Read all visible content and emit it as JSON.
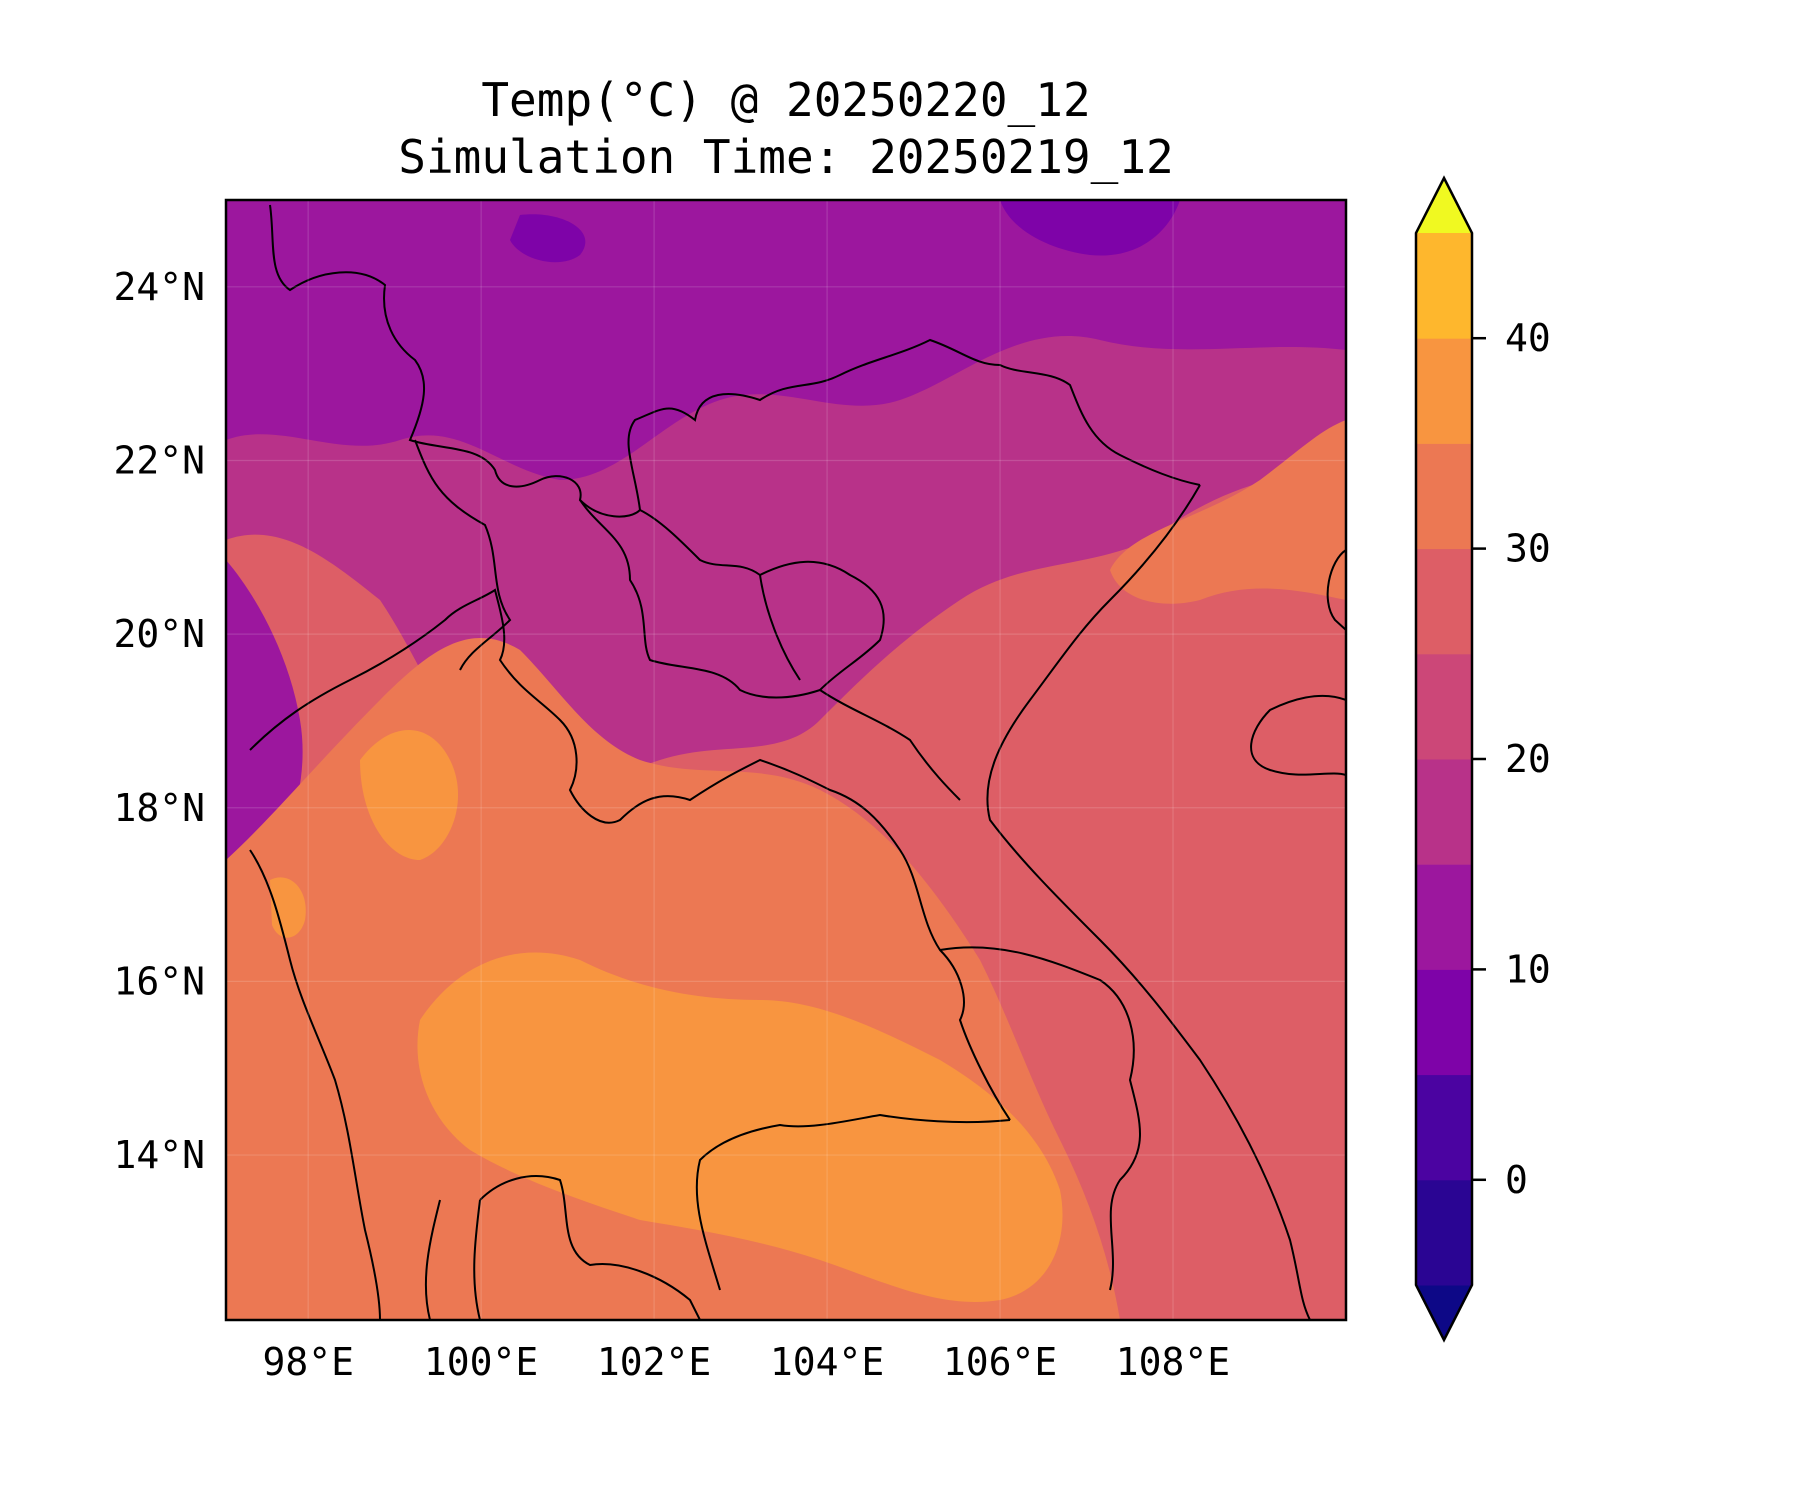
{
  "map": {
    "title_line1": "Temp(°C) @ 20250220_12",
    "title_line2": "Simulation Time: 20250219_12",
    "lon_labels": [
      "98°E",
      "100°E",
      "102°E",
      "104°E",
      "106°E",
      "108°E"
    ],
    "lat_labels": [
      "24°N",
      "22°N",
      "20°N",
      "18°N",
      "16°N",
      "14°N"
    ],
    "lon_values": [
      98,
      100,
      102,
      104,
      106,
      108
    ],
    "lat_values": [
      24,
      22,
      20,
      18,
      16,
      14
    ],
    "lon_range": [
      97.05,
      110.0
    ],
    "lat_range": [
      12.1,
      25.0
    ],
    "grid": true
  },
  "colorbar": {
    "tick_labels": [
      "0",
      "10",
      "20",
      "30",
      "40"
    ],
    "tick_values": [
      0,
      10,
      20,
      30,
      40
    ],
    "range": [
      -5,
      45
    ],
    "levels": [
      -5,
      0,
      5,
      10,
      15,
      20,
      25,
      30,
      35,
      40,
      45
    ],
    "extend": "both",
    "colors": [
      "#0d0887",
      "#2a0593",
      "#4b03a1",
      "#7e03a8",
      "#9c179e",
      "#b83289",
      "#cc4778",
      "#dd5e66",
      "#ec7853",
      "#f89540",
      "#feb72d",
      "#f1e827",
      "#f0f921"
    ]
  }
}
